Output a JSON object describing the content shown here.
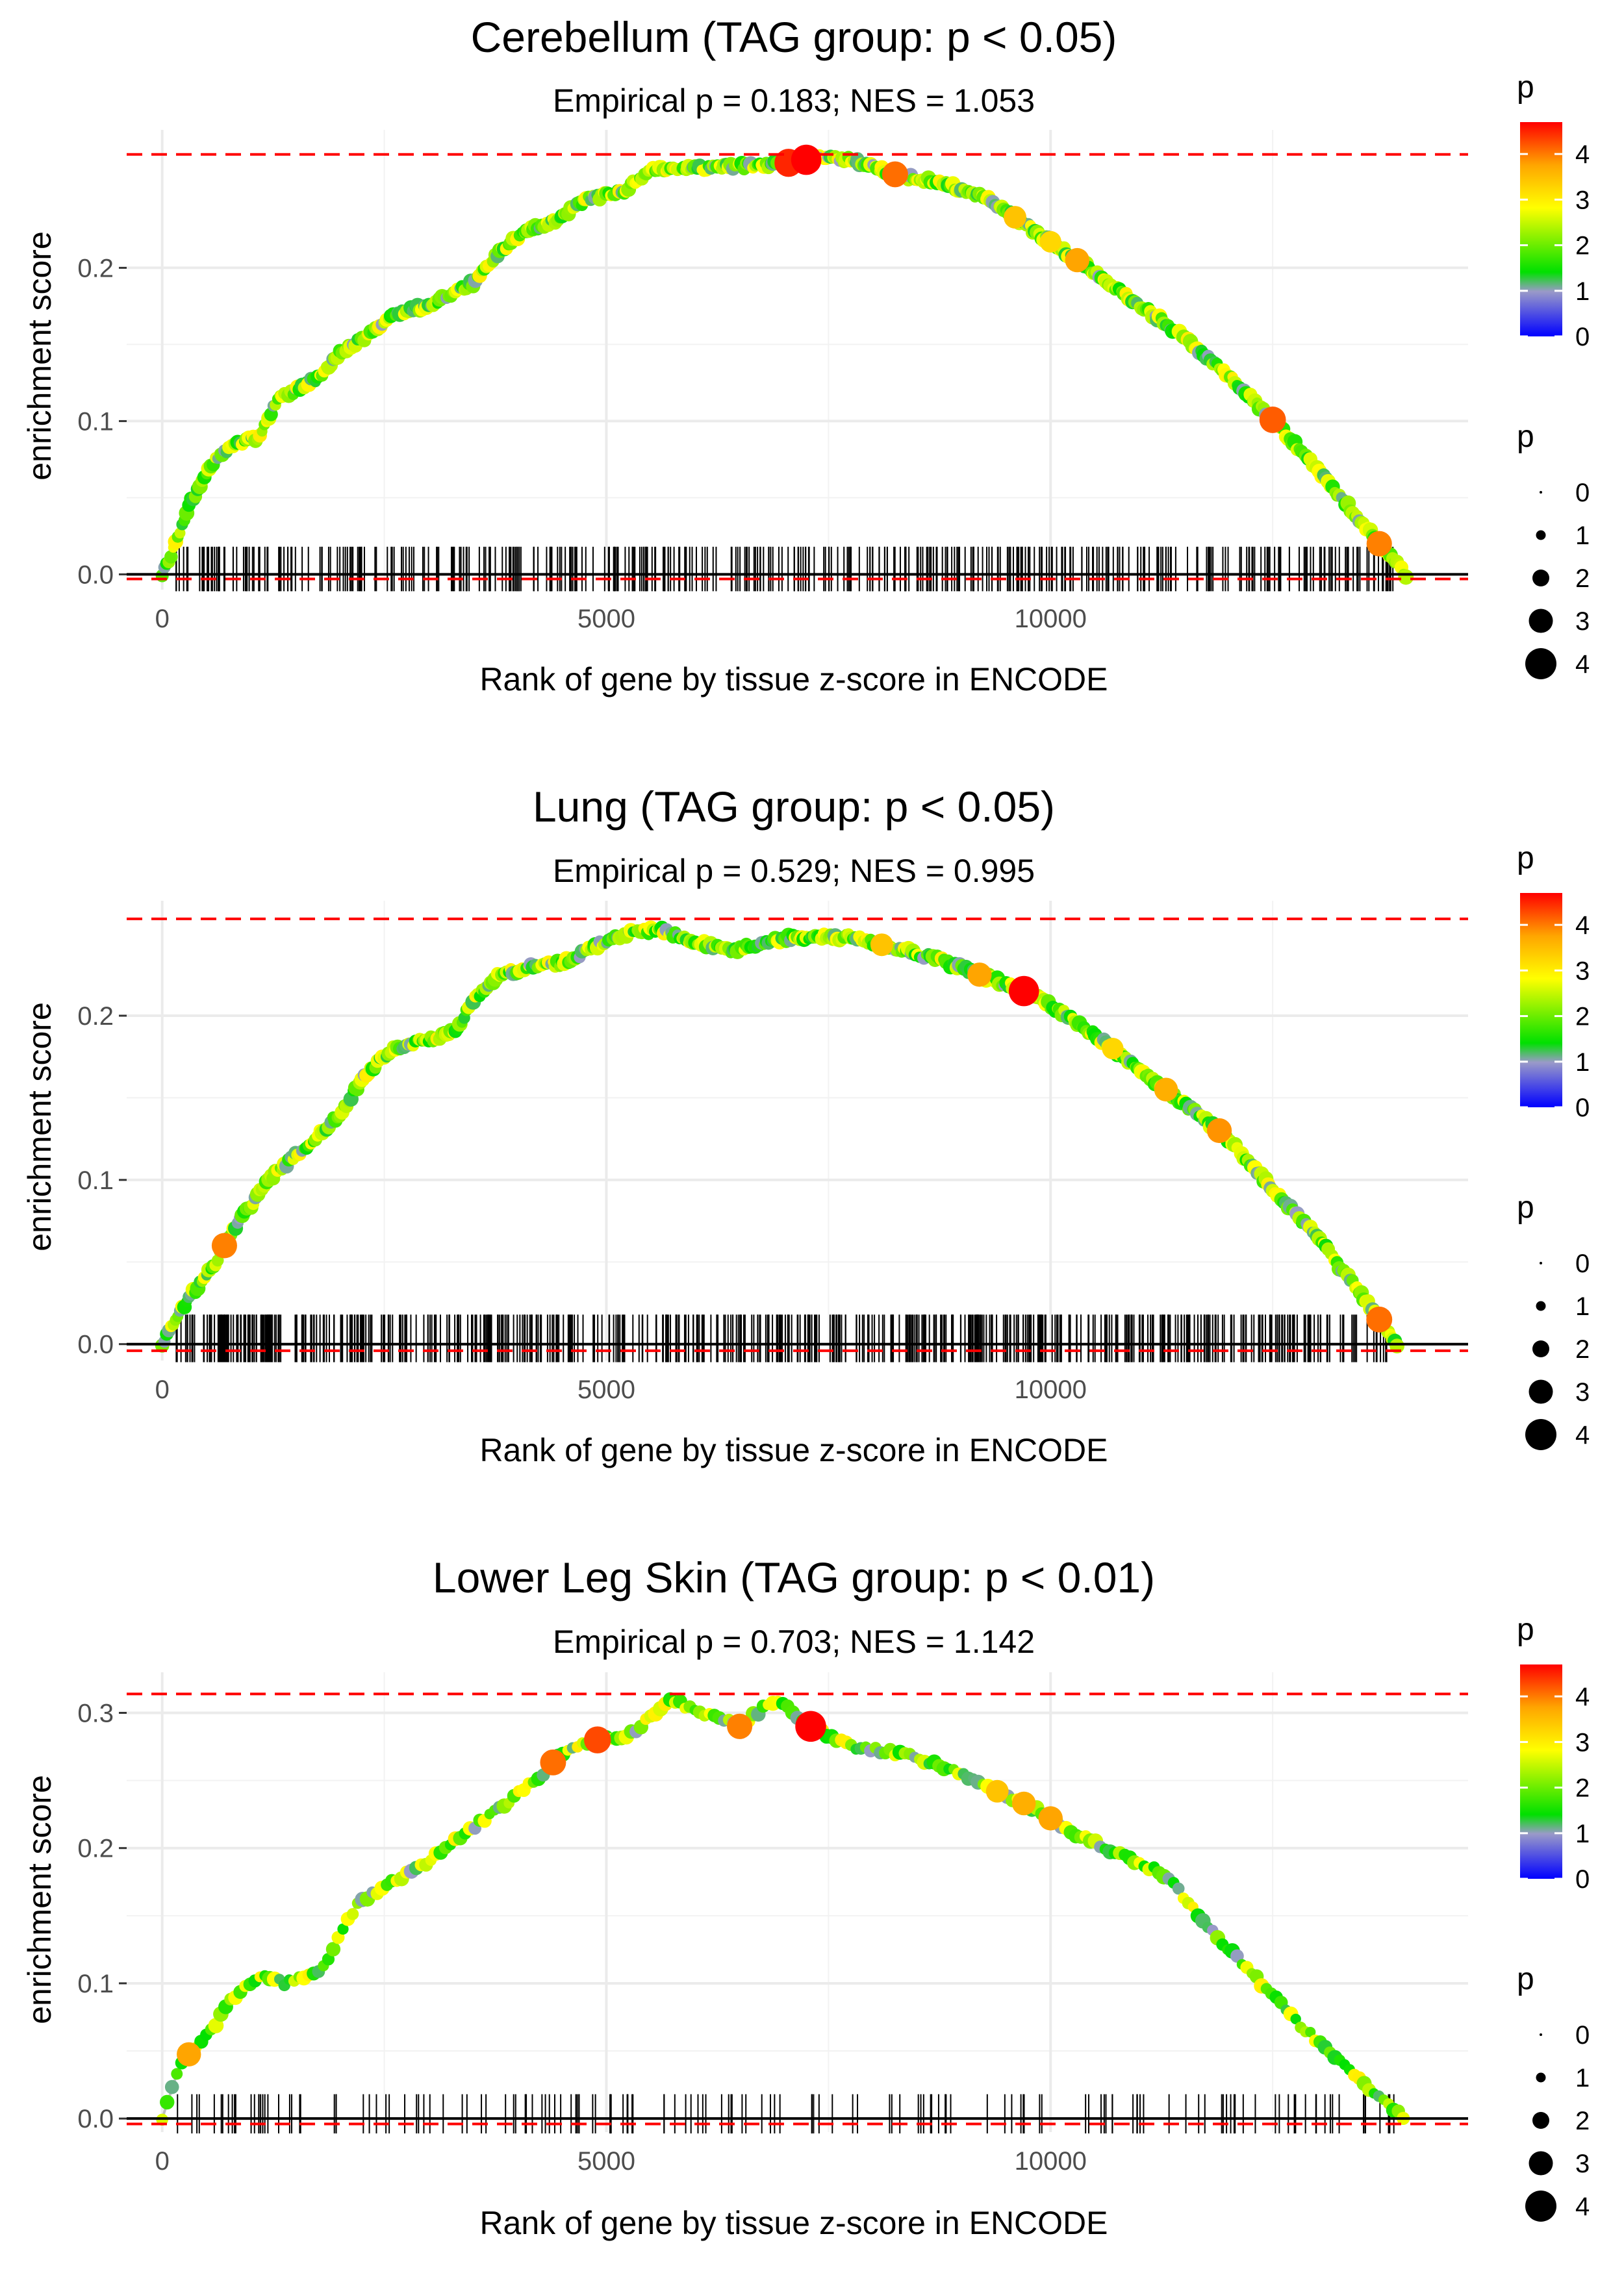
{
  "chart_data": [
    {
      "type": "line",
      "title": "Cerebellum (TAG group: p < 0.05)",
      "subtitle": "Empirical p = 0.183; NES = 1.053",
      "xlabel": "Rank of gene by tissue z-score in ENCODE",
      "ylabel": "enrichment score",
      "xlim": [
        -400,
        14700
      ],
      "ylim": [
        -0.01,
        0.29
      ],
      "x_ticks": [
        0,
        5000,
        10000
      ],
      "x_tick_labels": [
        "0",
        "5000",
        "10000"
      ],
      "y_ticks": [
        0.0,
        0.1,
        0.2
      ],
      "y_tick_labels": [
        "0.0",
        "0.1",
        "0.2"
      ],
      "max_es": 0.274,
      "min_es": -0.003,
      "curve_x": [
        0,
        150,
        300,
        450,
        600,
        800,
        1100,
        1300,
        1500,
        1800,
        2000,
        2300,
        2600,
        3000,
        3500,
        3800,
        4100,
        4400,
        4800,
        5200,
        5500,
        6000,
        6500,
        7000,
        7400,
        7800,
        8300,
        8800,
        9300,
        9800,
        10300,
        10900,
        11500,
        12000,
        12600,
        13200,
        13700,
        14000
      ],
      "curve_y": [
        0.0,
        0.02,
        0.045,
        0.06,
        0.075,
        0.085,
        0.09,
        0.115,
        0.12,
        0.13,
        0.145,
        0.155,
        0.17,
        0.175,
        0.19,
        0.21,
        0.225,
        0.23,
        0.245,
        0.25,
        0.265,
        0.265,
        0.266,
        0.268,
        0.272,
        0.27,
        0.26,
        0.255,
        0.245,
        0.225,
        0.205,
        0.18,
        0.155,
        0.13,
        0.095,
        0.055,
        0.02,
        0.0
      ],
      "highlight_points": [
        {
          "x": 7050,
          "p": 4.2
        },
        {
          "x": 7250,
          "p": 4.6
        },
        {
          "x": 8250,
          "p": 3.8
        },
        {
          "x": 9600,
          "p": 3.2
        },
        {
          "x": 10000,
          "p": 3.0
        },
        {
          "x": 10300,
          "p": 3.5
        },
        {
          "x": 12500,
          "p": 3.9
        },
        {
          "x": 13700,
          "p": 3.7
        }
      ],
      "rug_count": 420,
      "rug_seed": 11,
      "color_legend": {
        "title": "p",
        "ticks": [
          "0",
          "1",
          "2",
          "3",
          "4"
        ]
      },
      "size_legend": {
        "title": "p",
        "labels": [
          "0",
          "1",
          "2",
          "3",
          "4"
        ]
      }
    },
    {
      "type": "line",
      "title": "Lung (TAG group: p < 0.05)",
      "subtitle": "Empirical p = 0.529; NES = 0.995",
      "xlabel": "Rank of gene by tissue z-score in ENCODE",
      "ylabel": "enrichment score",
      "xlim": [
        -400,
        14700
      ],
      "ylim": [
        -0.01,
        0.27
      ],
      "x_ticks": [
        0,
        5000,
        10000
      ],
      "x_tick_labels": [
        "0",
        "5000",
        "10000"
      ],
      "y_ticks": [
        0.0,
        0.1,
        0.2
      ],
      "y_tick_labels": [
        "0.0",
        "0.1",
        "0.2"
      ],
      "max_es": 0.259,
      "min_es": -0.004,
      "curve_x": [
        0,
        200,
        400,
        600,
        800,
        1000,
        1200,
        1500,
        1800,
        2000,
        2300,
        2600,
        3000,
        3300,
        3500,
        3800,
        4200,
        4500,
        4800,
        5200,
        5600,
        6000,
        6400,
        6800,
        7200,
        7700,
        8200,
        8700,
        9200,
        9700,
        10200,
        10700,
        11300,
        11900,
        12500,
        13000,
        13500,
        13900
      ],
      "curve_y": [
        0.0,
        0.02,
        0.035,
        0.05,
        0.07,
        0.085,
        0.1,
        0.115,
        0.13,
        0.14,
        0.165,
        0.18,
        0.185,
        0.19,
        0.21,
        0.225,
        0.23,
        0.232,
        0.24,
        0.25,
        0.252,
        0.245,
        0.24,
        0.245,
        0.248,
        0.248,
        0.242,
        0.235,
        0.225,
        0.215,
        0.2,
        0.18,
        0.155,
        0.13,
        0.095,
        0.065,
        0.03,
        0.0
      ],
      "highlight_points": [
        {
          "x": 700,
          "p": 3.7
        },
        {
          "x": 8100,
          "p": 3.2
        },
        {
          "x": 9200,
          "p": 3.5
        },
        {
          "x": 9700,
          "p": 4.6
        },
        {
          "x": 10700,
          "p": 3.0
        },
        {
          "x": 11300,
          "p": 3.4
        },
        {
          "x": 11900,
          "p": 3.6
        },
        {
          "x": 13700,
          "p": 3.8
        }
      ],
      "rug_count": 600,
      "rug_seed": 23,
      "color_legend": {
        "title": "p",
        "ticks": [
          "0",
          "1",
          "2",
          "3",
          "4"
        ]
      },
      "size_legend": {
        "title": "p",
        "labels": [
          "0",
          "1",
          "2",
          "3",
          "4"
        ]
      }
    },
    {
      "type": "line",
      "title": "Lower Leg Skin (TAG group: p < 0.01)",
      "subtitle": "Empirical p = 0.703; NES = 1.142",
      "xlabel": "Rank of gene by tissue z-score in ENCODE",
      "ylabel": "enrichment score",
      "xlim": [
        -400,
        14700
      ],
      "ylim": [
        -0.01,
        0.33
      ],
      "x_ticks": [
        0,
        5000,
        10000
      ],
      "x_tick_labels": [
        "0",
        "5000",
        "10000"
      ],
      "y_ticks": [
        0.0,
        0.1,
        0.2,
        0.3
      ],
      "y_tick_labels": [
        "0.0",
        "0.1",
        "0.2",
        "0.3"
      ],
      "max_es": 0.314,
      "min_es": -0.004,
      "curve_x": [
        0,
        200,
        400,
        600,
        800,
        1100,
        1400,
        1800,
        2200,
        2600,
        3000,
        3400,
        3800,
        4200,
        4500,
        4900,
        5300,
        5700,
        6100,
        6500,
        6900,
        7300,
        7800,
        8300,
        8800,
        9300,
        9800,
        10300,
        10800,
        11300,
        11800,
        12300,
        12800,
        13300,
        13700,
        14000
      ],
      "curve_y": [
        0.0,
        0.04,
        0.055,
        0.07,
        0.09,
        0.105,
        0.1,
        0.11,
        0.16,
        0.175,
        0.19,
        0.21,
        0.23,
        0.25,
        0.27,
        0.28,
        0.285,
        0.31,
        0.3,
        0.29,
        0.31,
        0.29,
        0.275,
        0.27,
        0.26,
        0.245,
        0.23,
        0.21,
        0.195,
        0.18,
        0.14,
        0.105,
        0.07,
        0.04,
        0.015,
        0.0
      ],
      "highlight_points": [
        {
          "x": 300,
          "p": 3.5
        },
        {
          "x": 4400,
          "p": 3.8
        },
        {
          "x": 4900,
          "p": 4.0
        },
        {
          "x": 6500,
          "p": 3.7
        },
        {
          "x": 7300,
          "p": 4.7
        },
        {
          "x": 9400,
          "p": 3.2
        },
        {
          "x": 9700,
          "p": 3.4
        },
        {
          "x": 10000,
          "p": 3.5
        }
      ],
      "rug_count": 160,
      "rug_seed": 37,
      "color_legend": {
        "title": "p",
        "ticks": [
          "0",
          "1",
          "2",
          "3",
          "4"
        ]
      },
      "size_legend": {
        "title": "p",
        "labels": [
          "0",
          "1",
          "2",
          "3",
          "4"
        ]
      }
    }
  ]
}
